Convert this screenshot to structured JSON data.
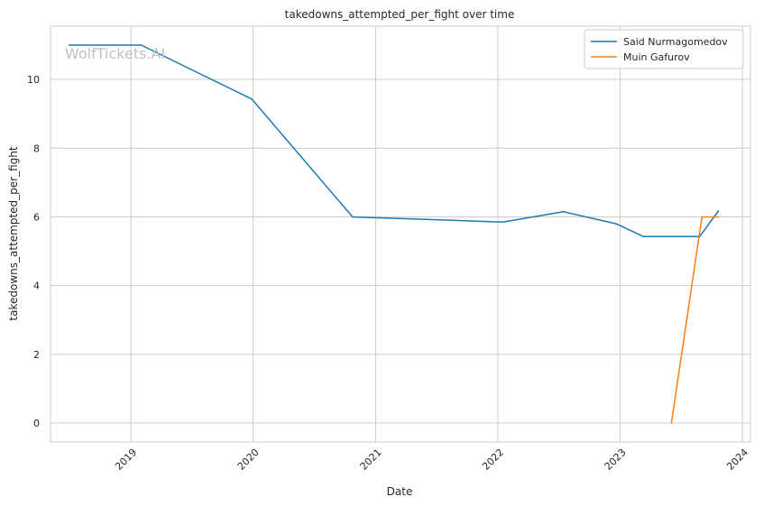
{
  "chart_data": {
    "type": "line",
    "title": "takedowns_attempted_per_fight over time",
    "xlabel": "Date",
    "ylabel": "takedowns_attempted_per_fight",
    "watermark": "WolfTickets.AI",
    "x_ticks": [
      "2019",
      "2020",
      "2021",
      "2022",
      "2023",
      "2024"
    ],
    "y_ticks": [
      "0",
      "2",
      "4",
      "6",
      "8",
      "10"
    ],
    "xlim": [
      "2018-05-06",
      "2024-01-25"
    ],
    "ylim": [
      -0.55,
      11.55
    ],
    "grid": true,
    "legend_position": "top-right",
    "series": [
      {
        "name": "Said Nurmagomedov",
        "color": "#1f77b4",
        "points": [
          {
            "x": "2018-07-01",
            "y": 11.0
          },
          {
            "x": "2019-02-01",
            "y": 11.0
          },
          {
            "x": "2019-12-28",
            "y": 9.43
          },
          {
            "x": "2020-10-24",
            "y": 6.0
          },
          {
            "x": "2022-01-15",
            "y": 5.85
          },
          {
            "x": "2022-07-15",
            "y": 6.15
          },
          {
            "x": "2022-12-20",
            "y": 5.8
          },
          {
            "x": "2023-03-11",
            "y": 5.43
          },
          {
            "x": "2023-08-26",
            "y": 5.43
          },
          {
            "x": "2023-10-21",
            "y": 6.17
          }
        ]
      },
      {
        "name": "Muin Gafurov",
        "color": "#ff7f0e",
        "points": [
          {
            "x": "2023-06-03",
            "y": 0.0
          },
          {
            "x": "2023-09-02",
            "y": 6.0
          },
          {
            "x": "2023-10-21",
            "y": 6.0
          }
        ]
      }
    ]
  }
}
